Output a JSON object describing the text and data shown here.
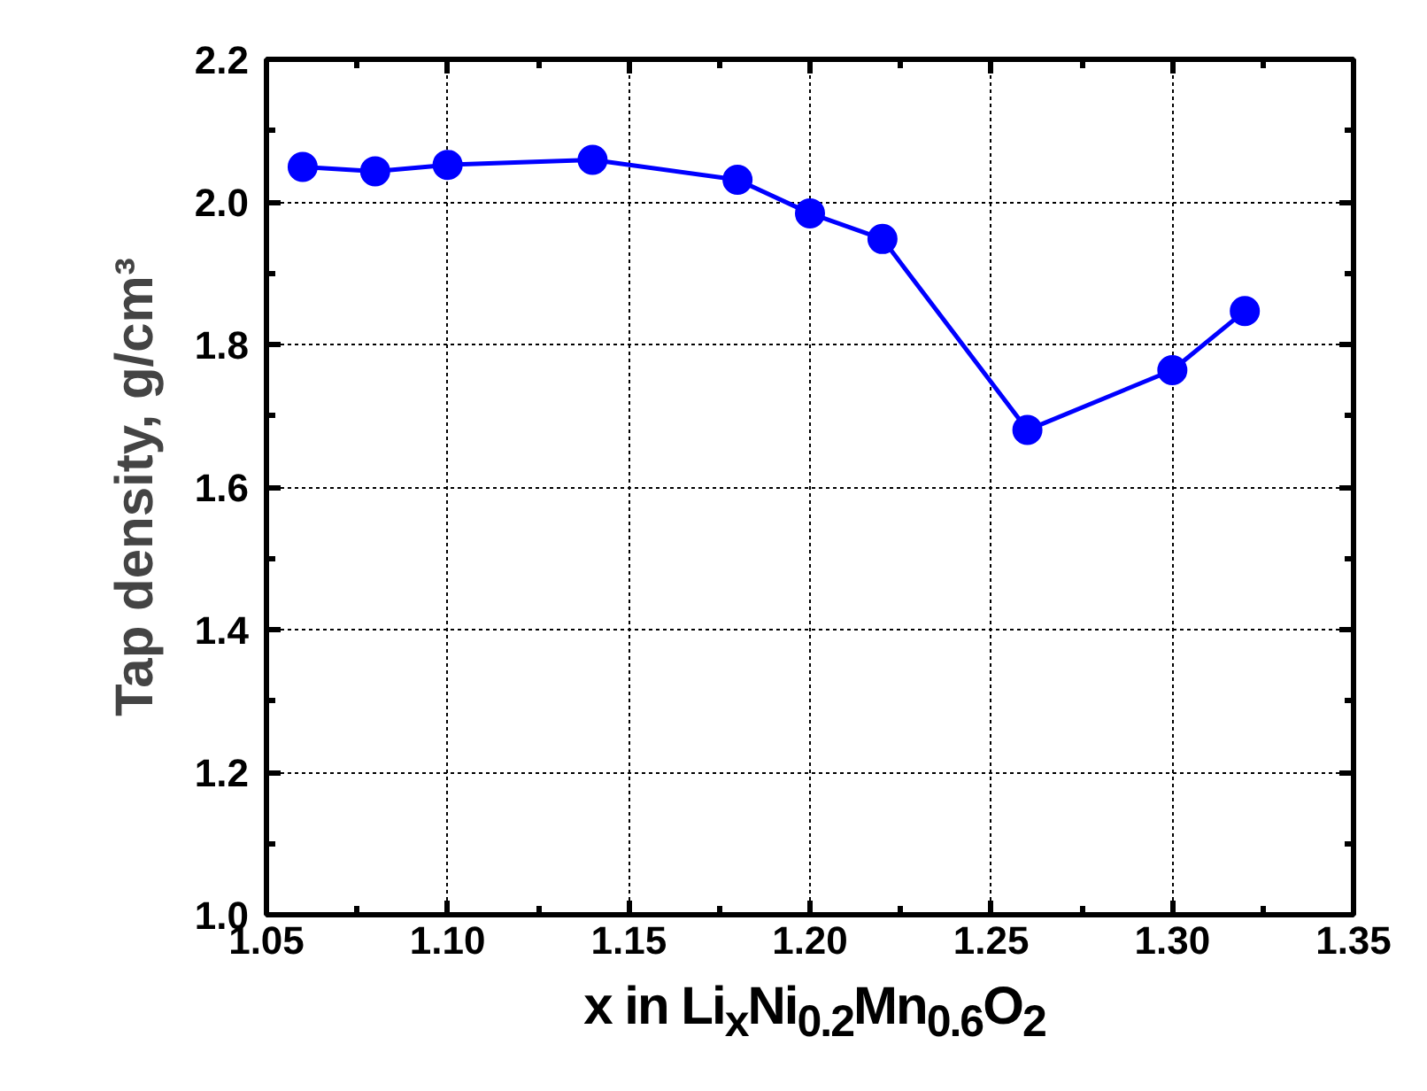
{
  "chart_data": {
    "type": "line",
    "xlabel": "x in Li$_{x}$Ni$_{0.2}$Mn$_{0.6}$O$_{2}$",
    "ylabel": "Tap density, g/cm³",
    "x": [
      1.06,
      1.08,
      1.1,
      1.14,
      1.18,
      1.2,
      1.22,
      1.26,
      1.3,
      1.32
    ],
    "series": [
      {
        "color": "#0000ff",
        "values": [
          2.049,
          2.043,
          2.052,
          2.059,
          2.031,
          1.984,
          1.948,
          1.68,
          1.764,
          1.847
        ]
      }
    ],
    "xlim": [
      1.05,
      1.35
    ],
    "ylim": [
      1.0,
      2.2
    ],
    "xticks": [
      1.05,
      {
        "value": 1.1,
        "label": "1.10"
      },
      1.15,
      {
        "value": 1.2,
        "label": "1.20"
      },
      1.25,
      {
        "value": 1.3,
        "label": "1.30"
      },
      1.35
    ],
    "yticks": [
      {
        "value": 1,
        "label": "1.0"
      },
      1.2,
      1.4,
      1.6,
      1.8,
      {
        "value": 2,
        "label": "2.0"
      },
      2.2
    ],
    "grid": true,
    "marker": "circle",
    "line_style": "solid"
  }
}
